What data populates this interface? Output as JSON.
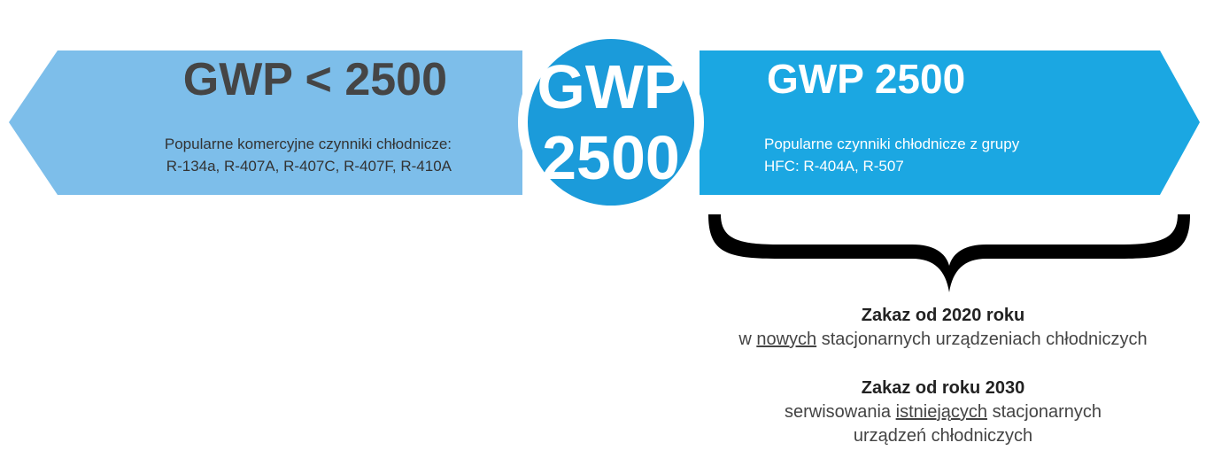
{
  "left": {
    "title": "GWP < 2500",
    "lines": [
      "Popularne komercyjne czynniki chłodnicze:",
      "R-134a, R-407A, R-407C, R-407F, R-410A"
    ]
  },
  "center": {
    "lines": [
      "GWP",
      "2500"
    ]
  },
  "right": {
    "title": "GWP 2500",
    "lines": [
      "Popularne czynniki chłodnicze z grupy",
      "HFC: R-404A, R-507"
    ]
  },
  "bans": [
    {
      "title": "Zakaz od 2020 roku",
      "before": "w",
      "underlined": "nowych",
      "after": "stacjonarnych urządzeniach chłodniczych"
    },
    {
      "title": "Zakaz od roku 2030",
      "before": "serwisowania",
      "underlined": "istniejących",
      "after": "stacjonarnych",
      "line2": "urządzeń chłodniczych"
    }
  ]
}
